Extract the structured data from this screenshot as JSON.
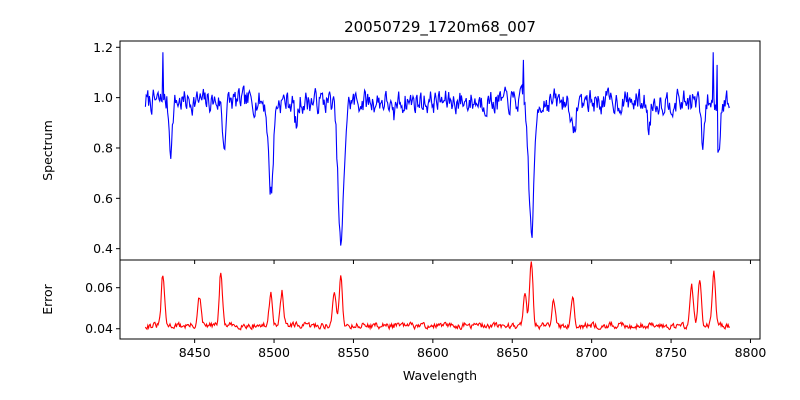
{
  "chart_data": [
    {
      "type": "line",
      "title": "20050729_1720m68_007",
      "xlabel": "",
      "ylabel": "Spectrum",
      "xlim": [
        8403,
        8806
      ],
      "ylim": [
        0.355,
        1.225
      ],
      "xticks": [
        8450,
        8500,
        8550,
        8600,
        8650,
        8700,
        8750,
        8800
      ],
      "xticklabels_visible": false,
      "yticks": [
        0.4,
        0.6,
        0.8,
        1.0,
        1.2
      ],
      "yticklabels": [
        "0.4",
        "0.6",
        "0.8",
        "1.0",
        "1.2"
      ],
      "grid": false,
      "series": [
        {
          "color": "#0000ff",
          "x_range": [
            8419,
            8787
          ],
          "continuum": 0.985,
          "noise_amplitude": 0.075,
          "features": [
            {
              "x": 8498.0,
              "depth": 0.36,
              "width": 1.5
            },
            {
              "x": 8542.1,
              "depth": 0.58,
              "width": 1.8
            },
            {
              "x": 8662.1,
              "depth": 0.52,
              "width": 1.7
            },
            {
              "x": 8468.5,
              "depth": 0.17,
              "width": 1.0
            },
            {
              "x": 8435.0,
              "depth": 0.18,
              "width": 1.0
            },
            {
              "x": 8688.6,
              "depth": 0.16,
              "width": 1.1
            },
            {
              "x": 8514.0,
              "depth": 0.1,
              "width": 1.0
            },
            {
              "x": 8575.0,
              "depth": 0.08,
              "width": 1.0
            },
            {
              "x": 8736.0,
              "depth": 0.1,
              "width": 1.0
            },
            {
              "x": 8770.0,
              "depth": 0.18,
              "width": 1.0
            },
            {
              "x": 8780.0,
              "depth": 0.2,
              "width": 0.8
            }
          ],
          "spikes": [
            {
              "x": 8430.0,
              "value": 1.18
            },
            {
              "x": 8657.0,
              "value": 1.15
            },
            {
              "x": 8776.5,
              "value": 1.18
            },
            {
              "x": 8779.0,
              "value": 1.13
            }
          ]
        }
      ]
    },
    {
      "type": "line",
      "title": "",
      "xlabel": "Wavelength",
      "ylabel": "Error",
      "xlim": [
        8403,
        8806
      ],
      "ylim": [
        0.035,
        0.0735
      ],
      "xticks": [
        8450,
        8500,
        8550,
        8600,
        8650,
        8700,
        8750,
        8800
      ],
      "xticklabels": [
        "8450",
        "8500",
        "8550",
        "8600",
        "8650",
        "8700",
        "8750",
        "8800"
      ],
      "yticks": [
        0.04,
        0.06
      ],
      "yticklabels": [
        "0.04",
        "0.06"
      ],
      "grid": false,
      "series": [
        {
          "color": "#ff0000",
          "x_range": [
            8419,
            8787
          ],
          "baseline": 0.0415,
          "noise_amplitude": 0.0022,
          "peaks": [
            {
              "x": 8430.0,
              "value": 0.066
            },
            {
              "x": 8466.5,
              "value": 0.067
            },
            {
              "x": 8453.0,
              "value": 0.055
            },
            {
              "x": 8498.0,
              "value": 0.058
            },
            {
              "x": 8505.0,
              "value": 0.058
            },
            {
              "x": 8542.0,
              "value": 0.066
            },
            {
              "x": 8538.0,
              "value": 0.058
            },
            {
              "x": 8662.0,
              "value": 0.073
            },
            {
              "x": 8658.0,
              "value": 0.059
            },
            {
              "x": 8688.0,
              "value": 0.056
            },
            {
              "x": 8676.0,
              "value": 0.053
            },
            {
              "x": 8763.0,
              "value": 0.061
            },
            {
              "x": 8768.0,
              "value": 0.065
            },
            {
              "x": 8777.0,
              "value": 0.067
            }
          ]
        }
      ]
    }
  ]
}
